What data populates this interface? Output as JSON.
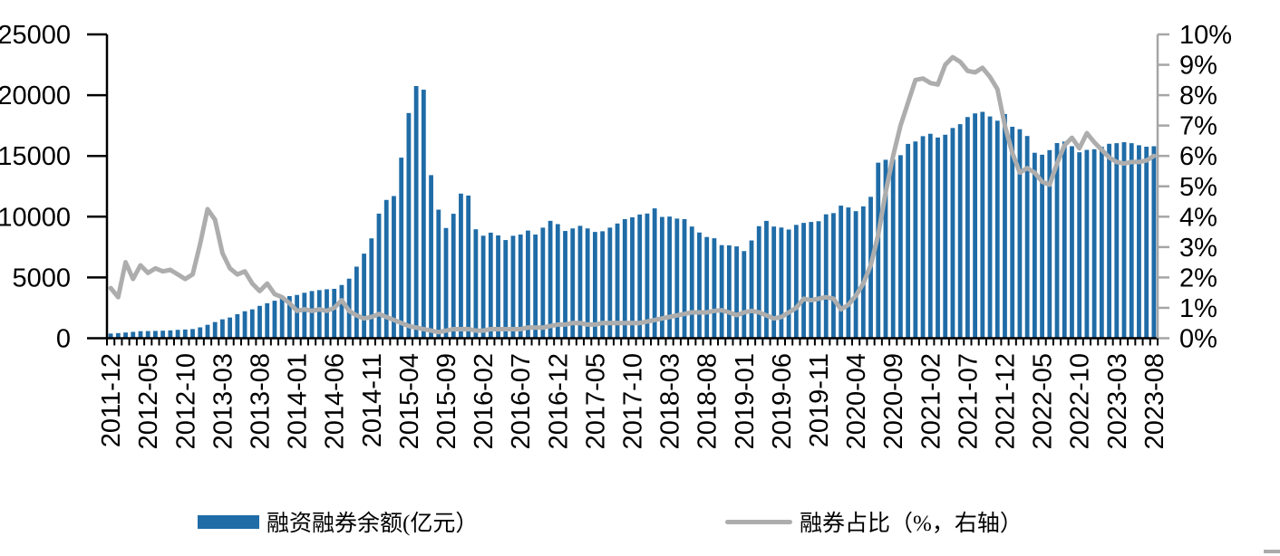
{
  "colors": {
    "bar": "#1F6CA7",
    "line": "#ADADAD",
    "left_axis": "#000000",
    "right_axis": "#A6A6A6",
    "text": "#000000"
  },
  "chart_data": {
    "type": "bar",
    "subtype": "combo-bar-line",
    "title": "",
    "grid": false,
    "legend_position": "bottom",
    "x": [
      "2011-12",
      "2012-01",
      "2012-02",
      "2012-03",
      "2012-04",
      "2012-05",
      "2012-06",
      "2012-07",
      "2012-08",
      "2012-09",
      "2012-10",
      "2012-11",
      "2012-12",
      "2013-01",
      "2013-02",
      "2013-03",
      "2013-04",
      "2013-05",
      "2013-06",
      "2013-07",
      "2013-08",
      "2013-09",
      "2013-10",
      "2013-11",
      "2013-12",
      "2014-01",
      "2014-02",
      "2014-03",
      "2014-04",
      "2014-05",
      "2014-06",
      "2014-07",
      "2014-08",
      "2014-09",
      "2014-10",
      "2014-11",
      "2014-12",
      "2015-01",
      "2015-02",
      "2015-03",
      "2015-04",
      "2015-05",
      "2015-06",
      "2015-07",
      "2015-08",
      "2015-09",
      "2015-10",
      "2015-11",
      "2015-12",
      "2016-01",
      "2016-02",
      "2016-03",
      "2016-04",
      "2016-05",
      "2016-06",
      "2016-07",
      "2016-08",
      "2016-09",
      "2016-10",
      "2016-11",
      "2016-12",
      "2017-01",
      "2017-02",
      "2017-03",
      "2017-04",
      "2017-05",
      "2017-06",
      "2017-07",
      "2017-08",
      "2017-09",
      "2017-10",
      "2017-11",
      "2017-12",
      "2018-01",
      "2018-02",
      "2018-03",
      "2018-04",
      "2018-05",
      "2018-06",
      "2018-07",
      "2018-08",
      "2018-09",
      "2018-10",
      "2018-11",
      "2018-12",
      "2019-01",
      "2019-02",
      "2019-03",
      "2019-04",
      "2019-05",
      "2019-06",
      "2019-07",
      "2019-08",
      "2019-09",
      "2019-10",
      "2019-11",
      "2019-12",
      "2020-01",
      "2020-02",
      "2020-03",
      "2020-04",
      "2020-05",
      "2020-06",
      "2020-07",
      "2020-08",
      "2020-09",
      "2020-10",
      "2020-11",
      "2020-12",
      "2021-01",
      "2021-02",
      "2021-03",
      "2021-04",
      "2021-05",
      "2021-06",
      "2021-07",
      "2021-08",
      "2021-09",
      "2021-10",
      "2021-11",
      "2021-12",
      "2022-01",
      "2022-02",
      "2022-03",
      "2022-04",
      "2022-05",
      "2022-06",
      "2022-07",
      "2022-08",
      "2022-09",
      "2022-10",
      "2022-11",
      "2022-12",
      "2023-01",
      "2023-02",
      "2023-03",
      "2023-04",
      "2023-05",
      "2023-06",
      "2023-07",
      "2023-08"
    ],
    "series": [
      {
        "name": "融资融券余额(亿元）",
        "type": "bar",
        "axis": "left",
        "color": "#1F6CA7",
        "values": [
          382,
          420,
          470,
          525,
          580,
          590,
          600,
          620,
          645,
          690,
          715,
          755,
          895,
          1105,
          1330,
          1555,
          1705,
          1980,
          2220,
          2375,
          2660,
          2880,
          3085,
          3380,
          3465,
          3560,
          3740,
          3880,
          3960,
          4030,
          4065,
          4380,
          4900,
          5890,
          6960,
          8215,
          10255,
          11380,
          11700,
          14860,
          18530,
          20750,
          20450,
          13420,
          10580,
          9070,
          10240,
          11900,
          11740,
          8965,
          8435,
          8685,
          8460,
          8080,
          8430,
          8530,
          8860,
          8530,
          9100,
          9660,
          9390,
          8825,
          9035,
          9250,
          9035,
          8745,
          8800,
          9100,
          9440,
          9800,
          9950,
          10180,
          10260,
          10685,
          9980,
          10010,
          9845,
          9800,
          9190,
          8700,
          8330,
          8225,
          7660,
          7640,
          7555,
          7170,
          8045,
          9220,
          9655,
          9190,
          9110,
          8945,
          9325,
          9490,
          9570,
          9630,
          10195,
          10295,
          10910,
          10760,
          10455,
          10850,
          11635,
          14445,
          14685,
          14720,
          15060,
          15990,
          16190,
          16625,
          16825,
          16515,
          16745,
          17300,
          17615,
          18200,
          18500,
          18630,
          18250,
          17900,
          18450,
          17400,
          17200,
          16640,
          15260,
          15100,
          15480,
          16060,
          16180,
          15800,
          15300,
          15500,
          15550,
          15750,
          16000,
          16050,
          16130,
          16050,
          15880,
          15760,
          15800
        ]
      },
      {
        "name": "融券占比（%，右轴）",
        "type": "line",
        "axis": "right",
        "color": "#ADADAD",
        "values": [
          1.65,
          1.35,
          2.5,
          1.95,
          2.4,
          2.15,
          2.3,
          2.2,
          2.25,
          2.1,
          1.95,
          2.1,
          3.1,
          4.25,
          3.9,
          2.8,
          2.3,
          2.1,
          2.2,
          1.8,
          1.55,
          1.8,
          1.45,
          1.35,
          1.15,
          0.9,
          0.95,
          0.9,
          0.95,
          0.9,
          1.0,
          1.25,
          0.9,
          0.75,
          0.65,
          0.7,
          0.8,
          0.7,
          0.6,
          0.5,
          0.4,
          0.35,
          0.3,
          0.25,
          0.2,
          0.25,
          0.3,
          0.3,
          0.3,
          0.25,
          0.25,
          0.3,
          0.3,
          0.3,
          0.3,
          0.3,
          0.35,
          0.35,
          0.35,
          0.4,
          0.45,
          0.45,
          0.5,
          0.5,
          0.45,
          0.45,
          0.5,
          0.5,
          0.5,
          0.5,
          0.5,
          0.5,
          0.55,
          0.6,
          0.65,
          0.7,
          0.75,
          0.8,
          0.85,
          0.85,
          0.85,
          0.9,
          0.92,
          0.85,
          0.76,
          0.85,
          0.9,
          0.85,
          0.75,
          0.65,
          0.7,
          0.85,
          1.0,
          1.3,
          1.25,
          1.3,
          1.35,
          1.3,
          0.95,
          1.1,
          1.4,
          1.8,
          2.4,
          3.4,
          4.8,
          6.0,
          7.0,
          7.75,
          8.5,
          8.55,
          8.4,
          8.35,
          9.0,
          9.25,
          9.1,
          8.8,
          8.75,
          8.9,
          8.6,
          8.2,
          7.0,
          6.1,
          5.45,
          5.6,
          5.45,
          5.15,
          5.05,
          5.75,
          6.35,
          6.6,
          6.25,
          6.75,
          6.45,
          6.2,
          5.95,
          5.8,
          5.75,
          5.8,
          5.8,
          5.85,
          6.0
        ]
      }
    ],
    "left_axis": {
      "min": 0,
      "max": 25000,
      "tick_step": 5000,
      "labels": [
        "0",
        "5000",
        "10000",
        "15000",
        "20000",
        "25000"
      ]
    },
    "right_axis": {
      "min": 0,
      "max": 10,
      "tick_step": 1,
      "labels": [
        "0%",
        "1%",
        "2%",
        "3%",
        "4%",
        "5%",
        "6%",
        "7%",
        "8%",
        "9%",
        "10%"
      ]
    },
    "x_tick_every": 5,
    "x_tick_labels": [
      "2011-12",
      "2012-05",
      "2012-10",
      "2013-03",
      "2013-08",
      "2014-01",
      "2014-06",
      "2014-11",
      "2015-04",
      "2015-09",
      "2016-02",
      "2016-07",
      "2016-12",
      "2017-05",
      "2017-10",
      "2018-03",
      "2018-08",
      "2019-01",
      "2019-06",
      "2019-11",
      "2020-04",
      "2020-09",
      "2021-02",
      "2021-07",
      "2021-12",
      "2022-05",
      "2022-10",
      "2023-03",
      "2023-08"
    ]
  },
  "legend": {
    "bar_label": "融资融券余额(亿元）",
    "line_label": "融券占比（%，右轴）"
  }
}
